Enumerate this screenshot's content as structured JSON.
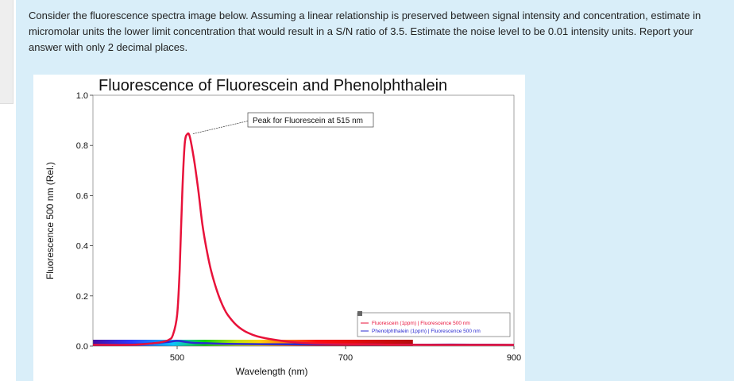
{
  "question": {
    "text": "Consider the fluorescence spectra image below. Assuming a linear relationship is preserved between signal intensity and concentration, estimate in micromolar units the lower limit concentration that would result in a S/N ratio of 3.5. Estimate the noise level to be 0.01 intensity units. Report your answer with only 2 decimal places."
  },
  "colors": {
    "panel_background": "#d9eef9",
    "fluorescein_line": "#e8123a",
    "phenolphthalein_line": "#2a2ad0"
  },
  "chart_data": {
    "type": "line",
    "title": "Fluorescence of Fluorescein and Phenolphthalein",
    "xlabel": "Wavelength (nm)",
    "ylabel": "Fluorescence 500 nm (Rel.)",
    "xlim": [
      400,
      900
    ],
    "ylim": [
      0.0,
      1.0
    ],
    "x_ticks": [
      "500",
      "700",
      "900"
    ],
    "y_ticks": [
      "1.0",
      "0.8",
      "0.6",
      "0.4",
      "0.2",
      "0.0"
    ],
    "series": [
      {
        "name": "Fluorescein (1ppm) | Fluorescence 500 nm",
        "x": [
          400,
          440,
          460,
          480,
          490,
          495,
          500,
          503,
          506,
          509,
          512,
          515,
          520,
          525,
          530,
          535,
          540,
          545,
          550,
          555,
          560,
          570,
          580,
          590,
          600,
          620,
          640,
          660,
          680,
          700,
          750,
          800,
          850,
          900
        ],
        "values": [
          0.0,
          0.0,
          0.003,
          0.01,
          0.02,
          0.04,
          0.12,
          0.3,
          0.6,
          0.8,
          0.84,
          0.83,
          0.74,
          0.62,
          0.48,
          0.38,
          0.3,
          0.24,
          0.19,
          0.15,
          0.12,
          0.08,
          0.055,
          0.04,
          0.03,
          0.018,
          0.01,
          0.006,
          0.004,
          0.003,
          0.001,
          0.0,
          0.0,
          0.0
        ]
      },
      {
        "name": "Phenolphthalein (1ppm) | Fluorescence 500 nm",
        "x": [
          400,
          450,
          470,
          490,
          500,
          510,
          520,
          540,
          560,
          600,
          650,
          700,
          750,
          800,
          850,
          900
        ],
        "values": [
          0.0,
          0.002,
          0.006,
          0.012,
          0.016,
          0.012,
          0.008,
          0.006,
          0.004,
          0.003,
          0.002,
          0.002,
          0.001,
          0.001,
          0.001,
          0.0
        ]
      }
    ],
    "annotations": [
      {
        "text": "Peak for Fluorescein at 515 nm",
        "x": 515,
        "y": 0.84
      }
    ],
    "legend": {
      "position": "bottom-right",
      "entries": [
        "Fluorescein (1ppm) | Fluorescence 500 nm",
        "Phenolphthalein (1ppm) | Fluorescence 500 nm"
      ]
    },
    "grid": false,
    "spectrum_bar": {
      "from_nm": 400,
      "to_nm": 780
    }
  }
}
